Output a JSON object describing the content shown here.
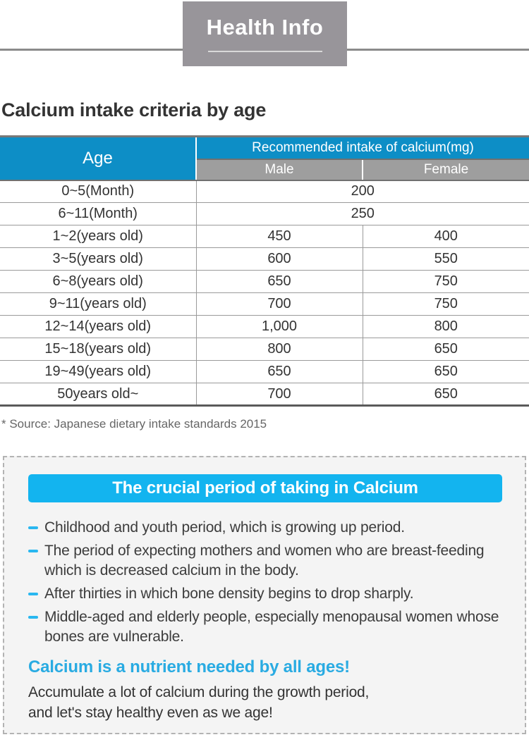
{
  "header": {
    "title": "Health Info"
  },
  "page": {
    "heading": "Calcium intake criteria by age",
    "source_note": "* Source: Japanese dietary intake standards 2015"
  },
  "table": {
    "col_age": "Age",
    "col_group": "Recommended intake of calcium(mg)",
    "col_male": "Male",
    "col_female": "Female",
    "rows": [
      {
        "age": "0~5(Month)",
        "value": "200",
        "span": true
      },
      {
        "age": "6~11(Month)",
        "value": "250",
        "span": true
      },
      {
        "age": "1~2(years old)",
        "male": "450",
        "female": "400"
      },
      {
        "age": "3~5(years old)",
        "male": "600",
        "female": "550"
      },
      {
        "age": "6~8(years old)",
        "male": "650",
        "female": "750"
      },
      {
        "age": "9~11(years old)",
        "male": "700",
        "female": "750"
      },
      {
        "age": "12~14(years old)",
        "male": "1,000",
        "female": "800"
      },
      {
        "age": "15~18(years old)",
        "male": "800",
        "female": "650"
      },
      {
        "age": "19~49(years old)",
        "male": "650",
        "female": "650"
      },
      {
        "age": "50years old~",
        "male": "700",
        "female": "650"
      }
    ]
  },
  "info_box": {
    "banner": "The crucial period of taking in Calcium",
    "bullets": [
      "Childhood and youth period, which is growing up period.",
      "The period of expecting mothers and women who are breast-feeding which is decreased calcium in the body.",
      "After thirties in which bone density begins to drop sharply.",
      "Middle-aged and elderly people, especially menopausal women whose bones are vulnerable."
    ],
    "highlight": "Calcium is a nutrient needed by all ages!",
    "closing_lines": [
      "Accumulate a lot of calcium during the growth period,",
      "and let's stay healthy even as we age!"
    ]
  },
  "colors": {
    "table_header_blue": "#0d8ec6",
    "subheader_gray": "#9e9e9e",
    "header_box_gray": "#98959a",
    "banner_cyan": "#13b4ef",
    "accent_cyan": "#29b7f0",
    "highlight_cyan": "#29abe2"
  }
}
